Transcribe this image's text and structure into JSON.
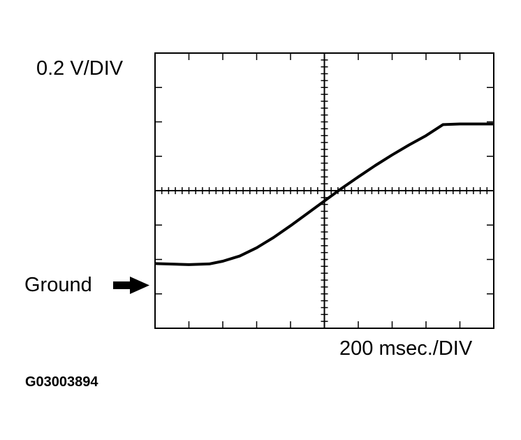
{
  "figure": {
    "id_label": "G03003894",
    "vertical_scale_label": "0.2 V/DIV",
    "horizontal_scale_label": "200 msec./DIV",
    "ground_label": "Ground",
    "ground_marker_icon": "arrow-right-icon"
  },
  "chart_data": {
    "type": "line",
    "title": "",
    "xlabel": "200 msec./DIV",
    "ylabel": "0.2 V/DIV",
    "grid": "oscilloscope graticule, 10 horizontal x 8 vertical divisions, center cross-hair with minor ticks",
    "x_divisions": 10,
    "y_divisions": 8,
    "x_units_per_div": "200 ms",
    "y_units_per_div": "0.2 V",
    "ground_reference_div": -2,
    "x": [
      0,
      1,
      1.6,
      2,
      2.5,
      3,
      3.5,
      4,
      4.5,
      5,
      5.5,
      6,
      6.5,
      7,
      7.5,
      8,
      8.5,
      9,
      10
    ],
    "series": [
      {
        "name": "waveform (divisions from center, ground at -2)",
        "values": [
          -2.12,
          -2.15,
          -2.13,
          -2.05,
          -1.9,
          -1.66,
          -1.36,
          -1.02,
          -0.66,
          -0.3,
          0.06,
          0.4,
          0.73,
          1.04,
          1.33,
          1.6,
          1.92,
          1.94,
          1.94
        ]
      }
    ],
    "annotations": [
      "Ground arrow marks -2 div below center line"
    ]
  }
}
